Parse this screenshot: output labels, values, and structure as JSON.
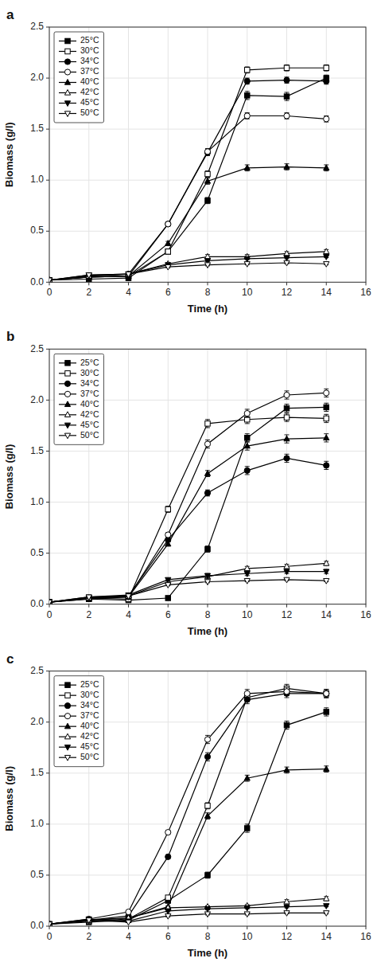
{
  "chart_data": [
    {
      "type": "line",
      "title": "a",
      "x_label": "Time (h)",
      "y_label": "Biomass (g/l)",
      "x": [
        0,
        2,
        4,
        6,
        8,
        10,
        12,
        14
      ],
      "xlim": [
        0,
        16
      ],
      "xticks": [
        0,
        2,
        4,
        6,
        8,
        10,
        12,
        14,
        16
      ],
      "ylim": [
        0.0,
        2.5
      ],
      "yticks": [
        {
          "value": 0.0,
          "label": "0.0"
        },
        0.5,
        {
          "value": 1.0,
          "label": "1.0"
        },
        1.5,
        {
          "value": 2.0,
          "label": "2.0"
        },
        2.5
      ],
      "legend": "top-left",
      "series": [
        {
          "name": "25°C",
          "color": "black",
          "marker": "square",
          "values": [
            0.02,
            0.03,
            0.04,
            0.3,
            0.8,
            1.83,
            1.82,
            2.0
          ],
          "error": [
            0.005,
            0.005,
            0.005,
            0.02,
            0.03,
            0.04,
            0.04,
            0.03
          ]
        },
        {
          "name": "30°C",
          "color": "black",
          "marker": "square-open",
          "values": [
            0.02,
            0.05,
            0.06,
            0.3,
            1.06,
            2.08,
            2.1,
            2.1
          ],
          "error": [
            0.005,
            0.005,
            0.005,
            0.02,
            0.03,
            0.03,
            0.03,
            0.03
          ]
        },
        {
          "name": "34°C",
          "color": "black",
          "marker": "circle",
          "values": [
            0.02,
            0.05,
            0.06,
            0.57,
            1.27,
            1.97,
            1.98,
            1.97
          ],
          "error": [
            0.005,
            0.005,
            0.005,
            0.02,
            0.03,
            0.03,
            0.03,
            0.03
          ]
        },
        {
          "name": "37°C",
          "color": "black",
          "marker": "circle-open",
          "values": [
            0.02,
            0.06,
            0.08,
            0.57,
            1.28,
            1.63,
            1.63,
            1.6
          ],
          "error": [
            0.005,
            0.005,
            0.005,
            0.02,
            0.03,
            0.03,
            0.03,
            0.03
          ]
        },
        {
          "name": "40°C",
          "color": "black",
          "marker": "triangle-up",
          "values": [
            0.02,
            0.05,
            0.06,
            0.38,
            0.99,
            1.12,
            1.13,
            1.12
          ],
          "error": [
            0.005,
            0.005,
            0.005,
            0.02,
            0.03,
            0.03,
            0.03,
            0.03
          ]
        },
        {
          "name": "42°C",
          "color": "black",
          "marker": "triangle-up-open",
          "values": [
            0.02,
            0.06,
            0.08,
            0.18,
            0.25,
            0.25,
            0.28,
            0.3
          ],
          "error": [
            0.005,
            0.005,
            0.005,
            0.01,
            0.02,
            0.02,
            0.02,
            0.02
          ]
        },
        {
          "name": "45°C",
          "color": "black",
          "marker": "triangle-down",
          "values": [
            0.02,
            0.07,
            0.08,
            0.17,
            0.21,
            0.23,
            0.24,
            0.25
          ],
          "error": [
            0.005,
            0.005,
            0.005,
            0.01,
            0.01,
            0.01,
            0.01,
            0.01
          ]
        },
        {
          "name": "50°C",
          "color": "black",
          "marker": "triangle-down-open",
          "values": [
            0.02,
            0.07,
            0.08,
            0.15,
            0.17,
            0.18,
            0.19,
            0.18
          ],
          "error": [
            0.005,
            0.005,
            0.005,
            0.01,
            0.01,
            0.01,
            0.01,
            0.01
          ]
        }
      ]
    },
    {
      "type": "line",
      "title": "b",
      "x_label": "Time (h)",
      "y_label": "Biomass (g/l)",
      "x": [
        0,
        2,
        4,
        6,
        8,
        10,
        12,
        14
      ],
      "xlim": [
        0,
        16
      ],
      "xticks": [
        0,
        2,
        4,
        6,
        8,
        10,
        12,
        14,
        16
      ],
      "ylim": [
        0.0,
        2.5
      ],
      "yticks": [
        {
          "value": 0.0,
          "label": "0.0"
        },
        0.5,
        {
          "value": 1.0,
          "label": "1.0"
        },
        1.5,
        {
          "value": 2.0,
          "label": "2.0"
        },
        2.5
      ],
      "legend": "top-left",
      "series": [
        {
          "name": "25°C",
          "color": "black",
          "marker": "square",
          "values": [
            0.02,
            0.05,
            0.04,
            0.06,
            0.54,
            1.63,
            1.92,
            1.93
          ],
          "error": [
            0.005,
            0.005,
            0.005,
            0.01,
            0.03,
            0.04,
            0.04,
            0.04
          ]
        },
        {
          "name": "30°C",
          "color": "black",
          "marker": "square-open",
          "values": [
            0.02,
            0.06,
            0.05,
            0.93,
            1.77,
            1.81,
            1.83,
            1.82
          ],
          "error": [
            0.005,
            0.005,
            0.005,
            0.03,
            0.04,
            0.04,
            0.04,
            0.04
          ]
        },
        {
          "name": "34°C",
          "color": "black",
          "marker": "circle",
          "values": [
            0.02,
            0.06,
            0.08,
            0.63,
            1.09,
            1.31,
            1.43,
            1.36
          ],
          "error": [
            0.005,
            0.005,
            0.005,
            0.02,
            0.03,
            0.04,
            0.04,
            0.04
          ]
        },
        {
          "name": "37°C",
          "color": "black",
          "marker": "circle-open",
          "values": [
            0.02,
            0.06,
            0.07,
            0.68,
            1.57,
            1.87,
            2.05,
            2.07
          ],
          "error": [
            0.005,
            0.005,
            0.005,
            0.02,
            0.04,
            0.04,
            0.04,
            0.04
          ]
        },
        {
          "name": "40°C",
          "color": "black",
          "marker": "triangle-up",
          "values": [
            0.02,
            0.05,
            0.07,
            0.59,
            1.28,
            1.55,
            1.62,
            1.63
          ],
          "error": [
            0.005,
            0.005,
            0.005,
            0.02,
            0.03,
            0.04,
            0.04,
            0.04
          ]
        },
        {
          "name": "42°C",
          "color": "black",
          "marker": "triangle-up-open",
          "values": [
            0.02,
            0.06,
            0.08,
            0.22,
            0.27,
            0.35,
            0.37,
            0.4
          ],
          "error": [
            0.005,
            0.005,
            0.005,
            0.01,
            0.02,
            0.02,
            0.02,
            0.02
          ]
        },
        {
          "name": "45°C",
          "color": "black",
          "marker": "triangle-down",
          "values": [
            0.02,
            0.07,
            0.09,
            0.24,
            0.28,
            0.3,
            0.32,
            0.32
          ],
          "error": [
            0.005,
            0.005,
            0.005,
            0.01,
            0.02,
            0.02,
            0.02,
            0.02
          ]
        },
        {
          "name": "50°C",
          "color": "black",
          "marker": "triangle-down-open",
          "values": [
            0.02,
            0.07,
            0.08,
            0.19,
            0.22,
            0.23,
            0.24,
            0.23
          ],
          "error": [
            0.005,
            0.005,
            0.005,
            0.01,
            0.01,
            0.01,
            0.01,
            0.01
          ]
        }
      ]
    },
    {
      "type": "line",
      "title": "c",
      "x_label": "Time (h)",
      "y_label": "Biomass (g/l)",
      "x": [
        0,
        2,
        4,
        6,
        8,
        10,
        12,
        14
      ],
      "xlim": [
        0,
        16
      ],
      "xticks": [
        0,
        2,
        4,
        6,
        8,
        10,
        12,
        14,
        16
      ],
      "ylim": [
        0.0,
        2.5
      ],
      "yticks": [
        {
          "value": 0.0,
          "label": "0.0"
        },
        0.5,
        {
          "value": 1.0,
          "label": "1.0"
        },
        1.5,
        {
          "value": 2.0,
          "label": "2.0"
        },
        2.5
      ],
      "legend": "top-left",
      "series": [
        {
          "name": "25°C",
          "color": "black",
          "marker": "square",
          "values": [
            0.02,
            0.04,
            0.06,
            0.25,
            0.5,
            0.96,
            1.97,
            2.1
          ],
          "error": [
            0.005,
            0.005,
            0.005,
            0.02,
            0.03,
            0.04,
            0.04,
            0.04
          ]
        },
        {
          "name": "30°C",
          "color": "black",
          "marker": "square-open",
          "values": [
            0.02,
            0.05,
            0.07,
            0.28,
            1.18,
            2.24,
            2.33,
            2.28
          ],
          "error": [
            0.005,
            0.005,
            0.005,
            0.02,
            0.03,
            0.04,
            0.04,
            0.04
          ]
        },
        {
          "name": "34°C",
          "color": "black",
          "marker": "circle",
          "values": [
            0.02,
            0.06,
            0.1,
            0.68,
            1.66,
            2.22,
            2.28,
            2.28
          ],
          "error": [
            0.005,
            0.005,
            0.005,
            0.02,
            0.04,
            0.04,
            0.04,
            0.04
          ]
        },
        {
          "name": "37°C",
          "color": "black",
          "marker": "circle-open",
          "values": [
            0.02,
            0.07,
            0.14,
            0.92,
            1.83,
            2.28,
            2.3,
            2.28
          ],
          "error": [
            0.005,
            0.005,
            0.005,
            0.02,
            0.04,
            0.04,
            0.04,
            0.04
          ]
        },
        {
          "name": "40°C",
          "color": "black",
          "marker": "triangle-up",
          "values": [
            0.02,
            0.06,
            0.08,
            0.19,
            1.08,
            1.45,
            1.53,
            1.54
          ],
          "error": [
            0.005,
            0.005,
            0.005,
            0.01,
            0.03,
            0.03,
            0.03,
            0.03
          ]
        },
        {
          "name": "42°C",
          "color": "black",
          "marker": "triangle-up-open",
          "values": [
            0.02,
            0.06,
            0.08,
            0.18,
            0.19,
            0.2,
            0.24,
            0.27
          ],
          "error": [
            0.005,
            0.005,
            0.005,
            0.01,
            0.01,
            0.01,
            0.02,
            0.02
          ]
        },
        {
          "name": "45°C",
          "color": "black",
          "marker": "triangle-down",
          "values": [
            0.02,
            0.07,
            0.05,
            0.15,
            0.17,
            0.18,
            0.19,
            0.2
          ],
          "error": [
            0.005,
            0.005,
            0.005,
            0.01,
            0.01,
            0.01,
            0.01,
            0.01
          ]
        },
        {
          "name": "50°C",
          "color": "black",
          "marker": "triangle-down-open",
          "values": [
            0.02,
            0.06,
            0.04,
            0.1,
            0.12,
            0.12,
            0.13,
            0.13
          ],
          "error": [
            0.005,
            0.005,
            0.005,
            0.01,
            0.01,
            0.01,
            0.01,
            0.01
          ]
        }
      ]
    }
  ]
}
